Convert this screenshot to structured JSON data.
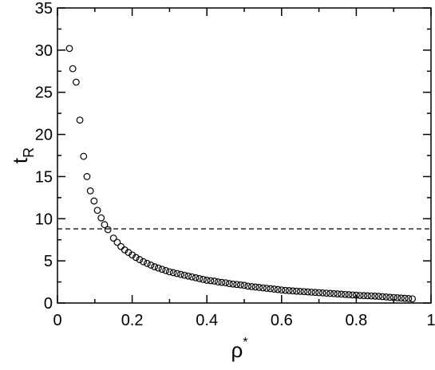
{
  "chart_data": {
    "type": "scatter",
    "xlabel": {
      "text": "ρ",
      "sup": "*"
    },
    "ylabel": {
      "text": "t",
      "sub": "R"
    },
    "xlim": [
      0,
      1
    ],
    "ylim": [
      0,
      35
    ],
    "xticks": [
      0,
      0.2,
      0.4,
      0.6,
      0.8,
      1
    ],
    "yticks": [
      0,
      5,
      10,
      15,
      20,
      25,
      30,
      35
    ],
    "xminorticks": [
      0.1,
      0.3,
      0.5,
      0.7,
      0.9
    ],
    "yminorticks": [
      2.5,
      7.5,
      12.5,
      17.5,
      22.5,
      27.5,
      32.5
    ],
    "hline": 8.8,
    "color": "#000000",
    "x": [
      0.032,
      0.041,
      0.05,
      0.06,
      0.07,
      0.079,
      0.088,
      0.098,
      0.107,
      0.117,
      0.126,
      0.135,
      0.15,
      0.16,
      0.17,
      0.18,
      0.19,
      0.2,
      0.21,
      0.22,
      0.23,
      0.24,
      0.25,
      0.26,
      0.27,
      0.28,
      0.29,
      0.3,
      0.31,
      0.32,
      0.33,
      0.34,
      0.35,
      0.36,
      0.37,
      0.38,
      0.39,
      0.4,
      0.41,
      0.42,
      0.43,
      0.44,
      0.45,
      0.46,
      0.47,
      0.48,
      0.49,
      0.5,
      0.51,
      0.52,
      0.53,
      0.54,
      0.55,
      0.56,
      0.57,
      0.58,
      0.59,
      0.6,
      0.61,
      0.62,
      0.63,
      0.64,
      0.65,
      0.66,
      0.67,
      0.68,
      0.69,
      0.7,
      0.71,
      0.72,
      0.73,
      0.74,
      0.75,
      0.76,
      0.77,
      0.78,
      0.79,
      0.8,
      0.81,
      0.82,
      0.83,
      0.84,
      0.85,
      0.86,
      0.87,
      0.88,
      0.89,
      0.9,
      0.91,
      0.92,
      0.93,
      0.94,
      0.95
    ],
    "values": [
      30.2,
      27.8,
      26.2,
      21.7,
      17.4,
      15.0,
      13.3,
      12.1,
      11.0,
      10.1,
      9.3,
      8.7,
      7.7,
      7.2,
      6.7,
      6.3,
      6.0,
      5.7,
      5.4,
      5.15,
      4.9,
      4.7,
      4.5,
      4.3,
      4.15,
      4.0,
      3.85,
      3.7,
      3.6,
      3.5,
      3.4,
      3.3,
      3.2,
      3.1,
      3.0,
      2.9,
      2.8,
      2.7,
      2.65,
      2.6,
      2.5,
      2.45,
      2.4,
      2.3,
      2.25,
      2.2,
      2.15,
      2.1,
      2.0,
      1.95,
      1.9,
      1.85,
      1.8,
      1.75,
      1.7,
      1.65,
      1.6,
      1.55,
      1.5,
      1.47,
      1.44,
      1.41,
      1.38,
      1.35,
      1.32,
      1.29,
      1.26,
      1.23,
      1.2,
      1.17,
      1.14,
      1.11,
      1.08,
      1.05,
      1.02,
      0.99,
      0.96,
      0.93,
      0.9,
      0.88,
      0.86,
      0.84,
      0.82,
      0.8,
      0.76,
      0.72,
      0.68,
      0.65,
      0.62,
      0.59,
      0.56,
      0.53,
      0.5
    ]
  }
}
